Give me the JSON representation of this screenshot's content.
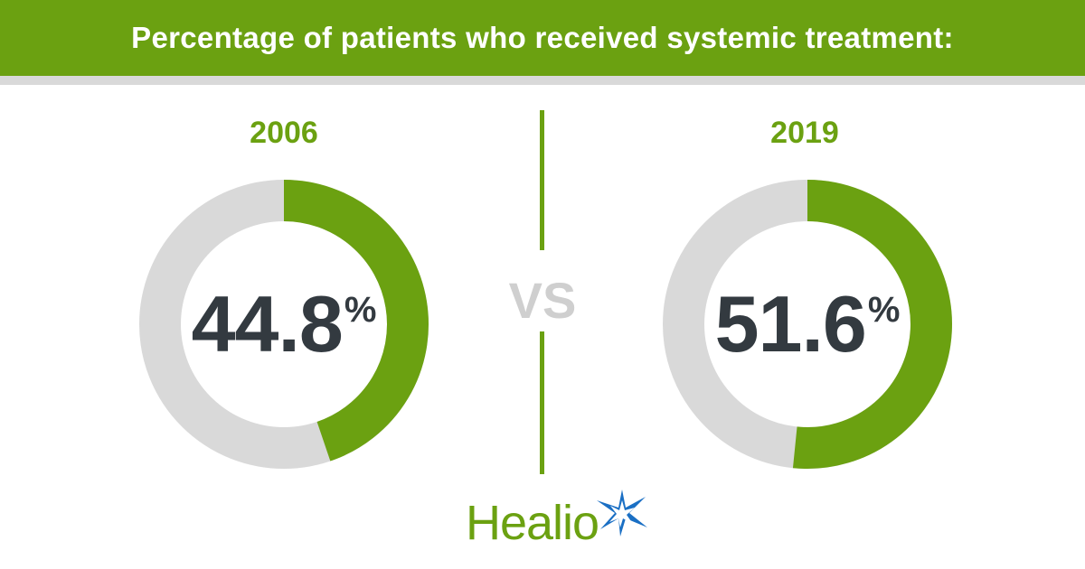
{
  "header": {
    "title": "Percentage of patients who received systemic treatment:"
  },
  "comparison": {
    "vs_label": "VS"
  },
  "logo": {
    "text": "Healio"
  },
  "colors": {
    "accent": "#6ba111",
    "track": "#d9d9d9",
    "value_text": "#333a40"
  },
  "chart_data": [
    {
      "type": "pie",
      "title": "2006",
      "value": 44.8,
      "value_label": "44.8",
      "unit": "%",
      "max": 100
    },
    {
      "type": "pie",
      "title": "2019",
      "value": 51.6,
      "value_label": "51.6",
      "unit": "%",
      "max": 100
    }
  ]
}
